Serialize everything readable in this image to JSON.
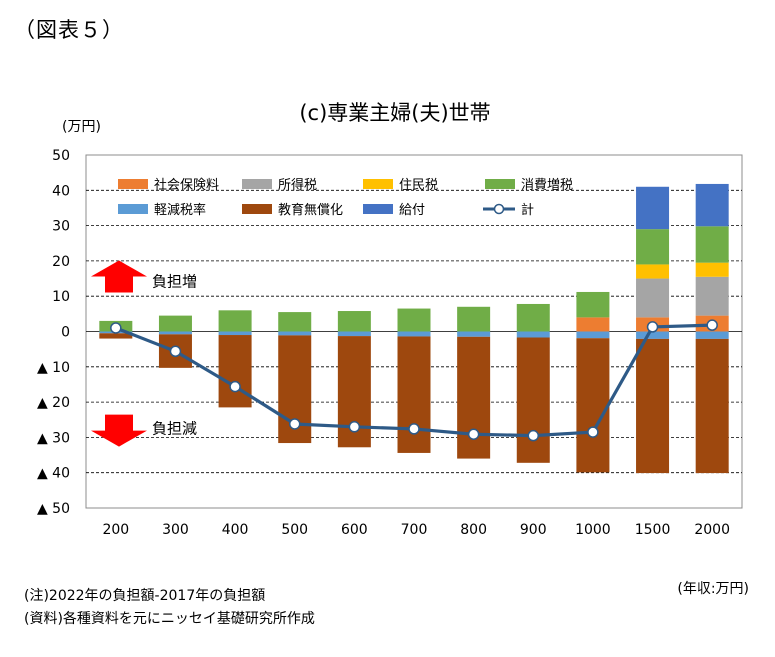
{
  "figure_label": "（図表５）",
  "notes": {
    "note": "(注)2022年の負担額-2017年の負担額",
    "source": "(資料)各種資料を元にニッセイ基礎研究所作成"
  },
  "x_unit_label": "(年収:万円)",
  "chart_data": {
    "type": "bar",
    "stacked": true,
    "title": "(c)専業主婦(夫)世帯",
    "ylabel": "(万円)",
    "xlabel": "",
    "ylim": [
      -50,
      50
    ],
    "yticks": [
      50,
      40,
      30,
      20,
      10,
      0,
      -10,
      -20,
      -30,
      -40,
      -50
    ],
    "ytick_labels": [
      "50",
      "40",
      "30",
      "20",
      "10",
      "0",
      "▲ 10",
      "▲ 20",
      "▲ 30",
      "▲ 40",
      "▲ 50"
    ],
    "grid": true,
    "legend_position": "top-inside",
    "categories": [
      "200",
      "300",
      "400",
      "500",
      "600",
      "700",
      "800",
      "900",
      "1000",
      "1500",
      "2000"
    ],
    "series": [
      {
        "name": "社会保険料",
        "color": "#ED7D31",
        "values": [
          0,
          0,
          0,
          0,
          0,
          0,
          0,
          0,
          4.0,
          4.0,
          4.5
        ]
      },
      {
        "name": "所得税",
        "color": "#A5A5A5",
        "values": [
          0,
          0,
          0,
          0,
          0,
          0,
          0,
          0,
          0,
          11.0,
          11.0
        ]
      },
      {
        "name": "住民税",
        "color": "#FFC000",
        "values": [
          0,
          0,
          0,
          0,
          0,
          0,
          0,
          0,
          0,
          4.0,
          4.0
        ]
      },
      {
        "name": "消費増税",
        "color": "#70AD47",
        "values": [
          3.0,
          4.5,
          6.0,
          5.5,
          5.8,
          6.5,
          7.0,
          7.8,
          7.2,
          10.0,
          10.3
        ]
      },
      {
        "name": "軽減税率",
        "color": "#5B9BD5",
        "values": [
          -0.5,
          -0.8,
          -1.0,
          -1.1,
          -1.3,
          -1.4,
          -1.5,
          -1.7,
          -1.9,
          -2.1,
          -2.1
        ]
      },
      {
        "name": "教育無償化",
        "color": "#9E480E",
        "values": [
          -1.5,
          -9.5,
          -20.5,
          -30.5,
          -31.5,
          -33.0,
          -34.5,
          -35.5,
          -38.0,
          -38.0,
          -38.0
        ]
      },
      {
        "name": "給付",
        "color": "#4472C4",
        "values": [
          0,
          0,
          0,
          0,
          0,
          0,
          0,
          0,
          0,
          12.0,
          12.0
        ]
      }
    ],
    "line_series": {
      "name": "計",
      "color": "#2E5A87",
      "values": [
        1.0,
        -5.6,
        -15.6,
        -26.2,
        -27.0,
        -27.6,
        -29.1,
        -29.5,
        -28.5,
        1.3,
        1.8
      ]
    },
    "legend_order": [
      "社会保険料",
      "所得税",
      "住民税",
      "消費増税",
      "軽減税率",
      "教育無償化",
      "給付",
      "計"
    ],
    "annotations": [
      {
        "text": "負担増",
        "arrow": "up",
        "color": "#FF0000"
      },
      {
        "text": "負担減",
        "arrow": "down",
        "color": "#FF0000"
      }
    ]
  }
}
